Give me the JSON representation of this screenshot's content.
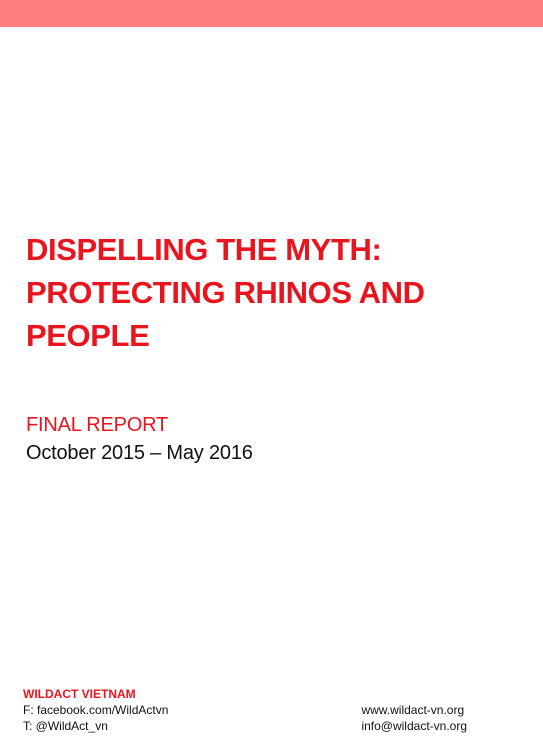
{
  "colors": {
    "top_band": "#ff7f7f",
    "accent_red": "#e8141e",
    "text_dark": "#111111"
  },
  "title": {
    "lines": [
      "DISPELLING THE MYTH:",
      "PROTECTING RHINOS AND",
      "PEOPLE"
    ]
  },
  "report": {
    "label": "FINAL REPORT",
    "date_range": "October 2015 – May 2016"
  },
  "footer": {
    "org_name": "WILDACT VIETNAM",
    "facebook": "F: facebook.com/WildActvn",
    "twitter": "T: @WildAct_vn",
    "website": "www.wildact-vn.org",
    "email": "info@wildact-vn.org"
  }
}
